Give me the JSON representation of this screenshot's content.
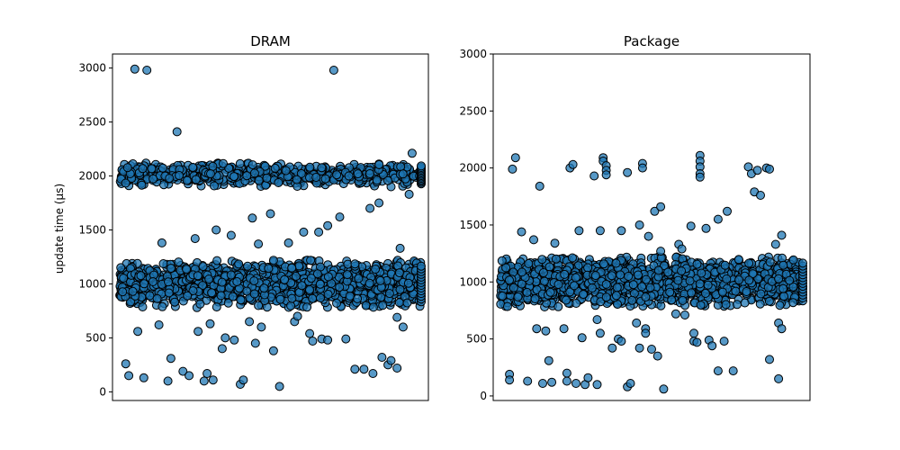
{
  "chart_data": [
    {
      "type": "scatter",
      "title": "DRAM",
      "xlabel": "",
      "ylabel": "update time (μs)",
      "ylim": [
        -80,
        3130
      ],
      "yticks": [
        0,
        500,
        1000,
        1500,
        2000,
        2500,
        3000
      ],
      "xticks": [],
      "grid": false,
      "marker_color": "#1f77b4",
      "edge_color": "#000000",
      "band_lower": {
        "center": 1000,
        "spread": 220,
        "points": 1300
      },
      "band_upper": {
        "center": 2010,
        "spread": 110,
        "points": 600
      },
      "outliers": [
        [
          0.02,
          260
        ],
        [
          0.03,
          150
        ],
        [
          0.05,
          2990
        ],
        [
          0.06,
          560
        ],
        [
          0.08,
          130
        ],
        [
          0.09,
          2980
        ],
        [
          0.13,
          620
        ],
        [
          0.14,
          1380
        ],
        [
          0.16,
          100
        ],
        [
          0.17,
          310
        ],
        [
          0.19,
          2410
        ],
        [
          0.21,
          190
        ],
        [
          0.23,
          150
        ],
        [
          0.25,
          1420
        ],
        [
          0.26,
          560
        ],
        [
          0.28,
          100
        ],
        [
          0.29,
          170
        ],
        [
          0.3,
          630
        ],
        [
          0.31,
          110
        ],
        [
          0.32,
          1500
        ],
        [
          0.34,
          400
        ],
        [
          0.35,
          500
        ],
        [
          0.37,
          1450
        ],
        [
          0.38,
          480
        ],
        [
          0.4,
          70
        ],
        [
          0.41,
          110
        ],
        [
          0.43,
          650
        ],
        [
          0.44,
          1610
        ],
        [
          0.45,
          450
        ],
        [
          0.46,
          1370
        ],
        [
          0.47,
          600
        ],
        [
          0.5,
          1650
        ],
        [
          0.51,
          380
        ],
        [
          0.53,
          50
        ],
        [
          0.56,
          1380
        ],
        [
          0.58,
          650
        ],
        [
          0.59,
          700
        ],
        [
          0.61,
          1480
        ],
        [
          0.63,
          540
        ],
        [
          0.64,
          470
        ],
        [
          0.66,
          1480
        ],
        [
          0.67,
          490
        ],
        [
          0.69,
          1540
        ],
        [
          0.69,
          480
        ],
        [
          0.71,
          2980
        ],
        [
          0.73,
          1620
        ],
        [
          0.75,
          490
        ],
        [
          0.76,
          2000
        ],
        [
          0.78,
          210
        ],
        [
          0.79,
          2020
        ],
        [
          0.81,
          210
        ],
        [
          0.83,
          1700
        ],
        [
          0.84,
          170
        ],
        [
          0.86,
          1750
        ],
        [
          0.87,
          320
        ],
        [
          0.89,
          250
        ],
        [
          0.9,
          290
        ],
        [
          0.92,
          690
        ],
        [
          0.92,
          220
        ],
        [
          0.93,
          1330
        ],
        [
          0.94,
          600
        ],
        [
          0.96,
          1830
        ],
        [
          0.97,
          2210
        ]
      ]
    },
    {
      "type": "scatter",
      "title": "Package",
      "xlabel": "",
      "ylabel": "",
      "ylim": [
        -40,
        3000
      ],
      "yticks": [
        0,
        500,
        1000,
        1500,
        2000,
        2500,
        3000
      ],
      "xticks": [],
      "grid": false,
      "marker_color": "#1f77b4",
      "edge_color": "#000000",
      "band_lower": {
        "center": 1000,
        "spread": 220,
        "points": 1600
      },
      "outliers": [
        [
          0.03,
          190
        ],
        [
          0.03,
          140
        ],
        [
          0.04,
          1990
        ],
        [
          0.05,
          2090
        ],
        [
          0.07,
          1440
        ],
        [
          0.09,
          130
        ],
        [
          0.11,
          1370
        ],
        [
          0.12,
          590
        ],
        [
          0.13,
          1840
        ],
        [
          0.14,
          110
        ],
        [
          0.15,
          570
        ],
        [
          0.16,
          310
        ],
        [
          0.17,
          120
        ],
        [
          0.18,
          1340
        ],
        [
          0.21,
          590
        ],
        [
          0.22,
          200
        ],
        [
          0.22,
          130
        ],
        [
          0.23,
          2000
        ],
        [
          0.24,
          2030
        ],
        [
          0.25,
          110
        ],
        [
          0.26,
          1450
        ],
        [
          0.27,
          510
        ],
        [
          0.28,
          100
        ],
        [
          0.29,
          160
        ],
        [
          0.31,
          1930
        ],
        [
          0.32,
          100
        ],
        [
          0.32,
          670
        ],
        [
          0.33,
          1450
        ],
        [
          0.33,
          550
        ],
        [
          0.34,
          2090
        ],
        [
          0.34,
          2060
        ],
        [
          0.35,
          2020
        ],
        [
          0.35,
          1980
        ],
        [
          0.35,
          1940
        ],
        [
          0.37,
          420
        ],
        [
          0.39,
          500
        ],
        [
          0.4,
          1450
        ],
        [
          0.4,
          480
        ],
        [
          0.42,
          1960
        ],
        [
          0.42,
          80
        ],
        [
          0.43,
          110
        ],
        [
          0.45,
          640
        ],
        [
          0.46,
          1500
        ],
        [
          0.46,
          420
        ],
        [
          0.47,
          2040
        ],
        [
          0.47,
          2000
        ],
        [
          0.48,
          590
        ],
        [
          0.48,
          550
        ],
        [
          0.49,
          1400
        ],
        [
          0.5,
          410
        ],
        [
          0.51,
          1620
        ],
        [
          0.52,
          350
        ],
        [
          0.53,
          1660
        ],
        [
          0.53,
          1270
        ],
        [
          0.54,
          60
        ],
        [
          0.56,
          910
        ],
        [
          0.58,
          720
        ],
        [
          0.59,
          1330
        ],
        [
          0.6,
          1290
        ],
        [
          0.61,
          710
        ],
        [
          0.63,
          1490
        ],
        [
          0.64,
          550
        ],
        [
          0.64,
          480
        ],
        [
          0.65,
          470
        ],
        [
          0.66,
          2110
        ],
        [
          0.66,
          2060
        ],
        [
          0.66,
          2010
        ],
        [
          0.66,
          1950
        ],
        [
          0.66,
          1920
        ],
        [
          0.68,
          1470
        ],
        [
          0.69,
          490
        ],
        [
          0.7,
          440
        ],
        [
          0.72,
          1550
        ],
        [
          0.72,
          220
        ],
        [
          0.74,
          480
        ],
        [
          0.75,
          1620
        ],
        [
          0.77,
          220
        ],
        [
          0.82,
          2010
        ],
        [
          0.83,
          1950
        ],
        [
          0.84,
          1790
        ],
        [
          0.85,
          1980
        ],
        [
          0.86,
          1760
        ],
        [
          0.88,
          2000
        ],
        [
          0.89,
          1990
        ],
        [
          0.89,
          320
        ],
        [
          0.91,
          1330
        ],
        [
          0.92,
          640
        ],
        [
          0.92,
          150
        ],
        [
          0.93,
          590
        ],
        [
          0.93,
          1410
        ]
      ]
    }
  ]
}
